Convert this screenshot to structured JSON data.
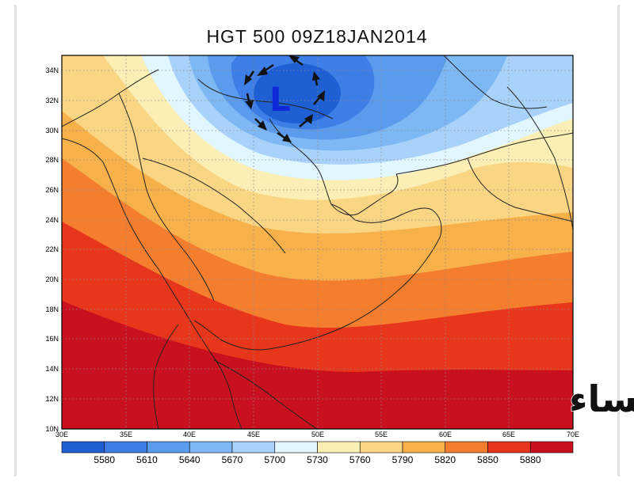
{
  "map": {
    "title": "HGT 500 09Z18JAN2014",
    "low_label": "L",
    "watermark": "براري الاحساء",
    "lat_labels": [
      "34N",
      "32N",
      "30N",
      "28N",
      "26N",
      "24N",
      "22N",
      "20N",
      "18N",
      "16N",
      "14N",
      "12N",
      "10N"
    ],
    "lon_labels": [
      "30E",
      "35E",
      "40E",
      "45E",
      "50E",
      "55E",
      "60E",
      "65E",
      "70E"
    ],
    "lat_range": [
      10,
      35
    ],
    "lon_range": [
      30,
      70
    ],
    "grid": "dotted"
  },
  "colorbar": {
    "values": [
      "5580",
      "5610",
      "5640",
      "5670",
      "5700",
      "5730",
      "5760",
      "5790",
      "5820",
      "5850",
      "5880"
    ],
    "colors": [
      "#1e5fd4",
      "#3d7fe6",
      "#5b9bee",
      "#7db7f4",
      "#a8d2f9",
      "#e1f6ff",
      "#fbefb5",
      "#fad684",
      "#f6b14b",
      "#f57e2e",
      "#e8361c",
      "#c8101e"
    ]
  },
  "icons": [
    "low-center-icon",
    "wind-arrow-icon"
  ]
}
